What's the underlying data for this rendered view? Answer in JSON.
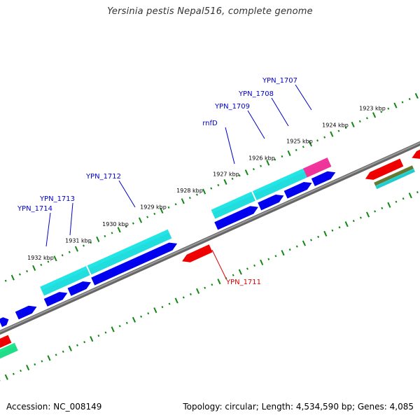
{
  "title": "Yersinia pestis Nepal516, complete genome",
  "footer": {
    "accession": "Accession: NC_008149",
    "summary": "Topology: circular; Length: 4,534,590 bp; Genes: 4,085"
  },
  "colors": {
    "forward_strand": "#0000ee",
    "reverse_strand": "#ee0000",
    "cds_feature": "#22dddd",
    "backbone": "#888888",
    "ticks": "#118811",
    "label_forward": "#0000cc",
    "label_reverse": "#dd0000"
  },
  "ticks": [
    {
      "label": "1923 kbp"
    },
    {
      "label": "1924 kbp"
    },
    {
      "label": "1925 kbp"
    },
    {
      "label": "1926 kbp"
    },
    {
      "label": "1927 kbp"
    },
    {
      "label": "1928 kbp"
    },
    {
      "label": "1929 kbp"
    },
    {
      "label": "1930 kbp"
    },
    {
      "label": "1931 kbp"
    },
    {
      "label": "1932 kbp"
    }
  ],
  "genes": [
    {
      "name": "YPN_1707",
      "strand": "forward"
    },
    {
      "name": "YPN_1708",
      "strand": "forward"
    },
    {
      "name": "YPN_1709",
      "strand": "forward"
    },
    {
      "name": "rnfD",
      "strand": "forward"
    },
    {
      "name": "YPN_1712",
      "strand": "forward"
    },
    {
      "name": "YPN_1713",
      "strand": "forward"
    },
    {
      "name": "YPN_1714",
      "strand": "forward"
    },
    {
      "name": "YPN_1711",
      "strand": "reverse"
    }
  ]
}
